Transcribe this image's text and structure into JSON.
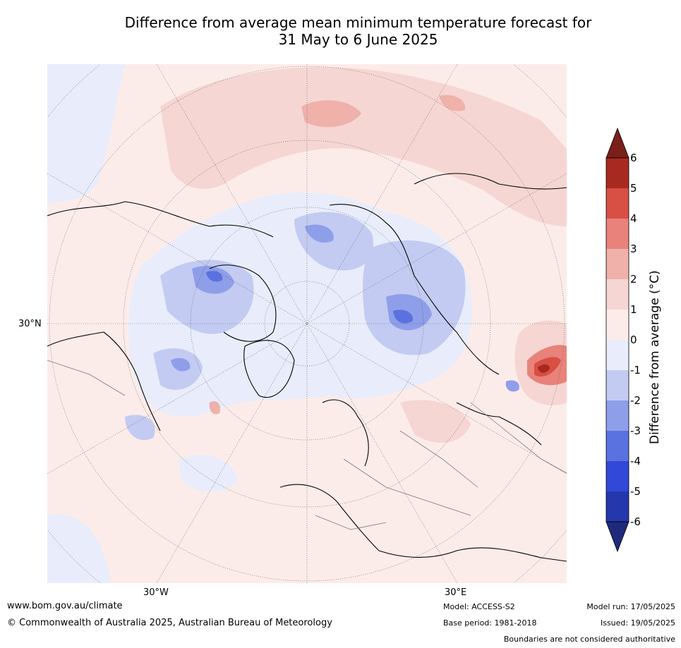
{
  "title": {
    "line1": "Difference from average mean minimum temperature forecast for",
    "line2": "31 May to 6 June 2025"
  },
  "map": {
    "projection": "north-polar-stereographic",
    "lat_labels": [
      "30°N"
    ],
    "lon_labels": [
      "30°W",
      "30°E"
    ]
  },
  "colorbar": {
    "title": "Difference from average (°C)",
    "ticks": [
      "6",
      "5",
      "4",
      "3",
      "2",
      "1",
      "0",
      "-1",
      "-2",
      "-3",
      "-4",
      "-5",
      "-6"
    ],
    "extend": "both",
    "colors": {
      "above_6": "#7a1f1a",
      "5_6": "#a8291f",
      "4_5": "#d84f43",
      "3_4": "#e8827a",
      "2_3": "#efb1aa",
      "1_2": "#f6d6d2",
      "0_1": "#fcece9",
      "m1_0": "#e9edfb",
      "m2_m1": "#c3cbf2",
      "m3_m2": "#8e9ee9",
      "m4_m3": "#5a71e0",
      "m5_m4": "#3148d8",
      "m6_m5": "#2437ad",
      "below_m6": "#1f2a7c"
    }
  },
  "footer": {
    "website": "www.bom.gov.au/climate",
    "copyright": "© Commonwealth of Australia 2025, Australian Bureau of Meteorology",
    "model": "Model: ACCESS-S2",
    "base_period": "Base period: 1981-2018",
    "model_run": "Model run: 17/05/2025",
    "issued": "Issued: 19/05/2025",
    "disclaimer": "Boundaries are not considered authoritative"
  }
}
